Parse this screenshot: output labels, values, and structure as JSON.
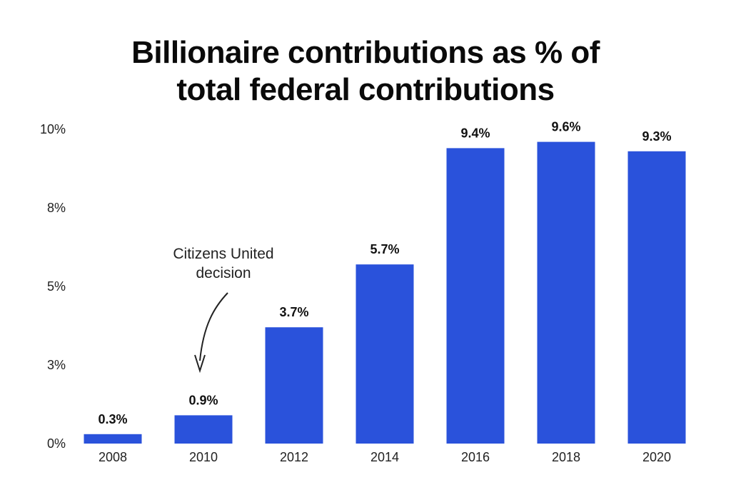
{
  "chart_data": {
    "type": "bar",
    "title_lines": [
      "Billionaire contributions as % of",
      "total federal contributions"
    ],
    "categories": [
      "2008",
      "2010",
      "2012",
      "2014",
      "2016",
      "2018",
      "2020"
    ],
    "values": [
      0.3,
      0.9,
      3.7,
      5.7,
      9.4,
      9.6,
      9.3
    ],
    "data_labels": [
      "0.3%",
      "0.9%",
      "3.7%",
      "5.7%",
      "9.4%",
      "9.6%",
      "9.3%"
    ],
    "y_ticks": [
      0,
      2.5,
      5,
      7.5,
      10
    ],
    "y_tick_labels": [
      "0%",
      "3%",
      "5%",
      "8%",
      "10%"
    ],
    "ylim": [
      0,
      10
    ],
    "xlabel": "",
    "ylabel": "",
    "grid": false,
    "bar_color": "#2a52db",
    "annotation": {
      "lines": [
        "Citizens United",
        "decision"
      ],
      "target_category": "2010"
    }
  }
}
